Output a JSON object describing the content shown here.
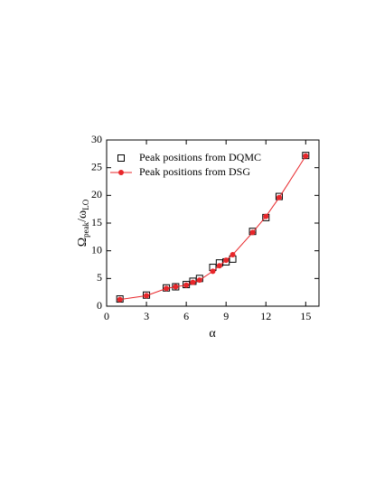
{
  "chart_data": {
    "type": "scatter",
    "x_label": "α",
    "y_label": [
      "Ω",
      "peak",
      "/ω",
      "LO"
    ],
    "xlim": [
      0,
      16
    ],
    "xticks": [
      0,
      3,
      6,
      9,
      12,
      15
    ],
    "ylim": [
      0,
      30
    ],
    "yticks": [
      0,
      5,
      10,
      15,
      20,
      25,
      30
    ],
    "legend": "upper left",
    "series": [
      {
        "name": "Peak positions from DQMC",
        "color": "#000000",
        "marker": "square",
        "line": false,
        "x": [
          1,
          3,
          4.5,
          5.2,
          6,
          6.5,
          7,
          8,
          8.5,
          9,
          9.5,
          11,
          12,
          13,
          15
        ],
        "values": [
          1.3,
          2,
          3.3,
          3.5,
          3.9,
          4.5,
          5,
          7,
          7.8,
          8,
          8.5,
          13.5,
          16,
          19.8,
          27.2
        ]
      },
      {
        "name": "Peak positions from DSG",
        "color": "#e8262a",
        "marker": "circle",
        "line": true,
        "x": [
          1,
          3,
          4.5,
          5.2,
          6,
          6.5,
          7,
          8,
          8.5,
          9,
          9.5,
          11,
          12,
          13,
          15
        ],
        "values": [
          1.2,
          1.9,
          3.2,
          3.5,
          3.8,
          4.3,
          4.7,
          6.3,
          7.3,
          8.3,
          9.3,
          13.3,
          16.2,
          19.6,
          27.1
        ]
      }
    ]
  }
}
